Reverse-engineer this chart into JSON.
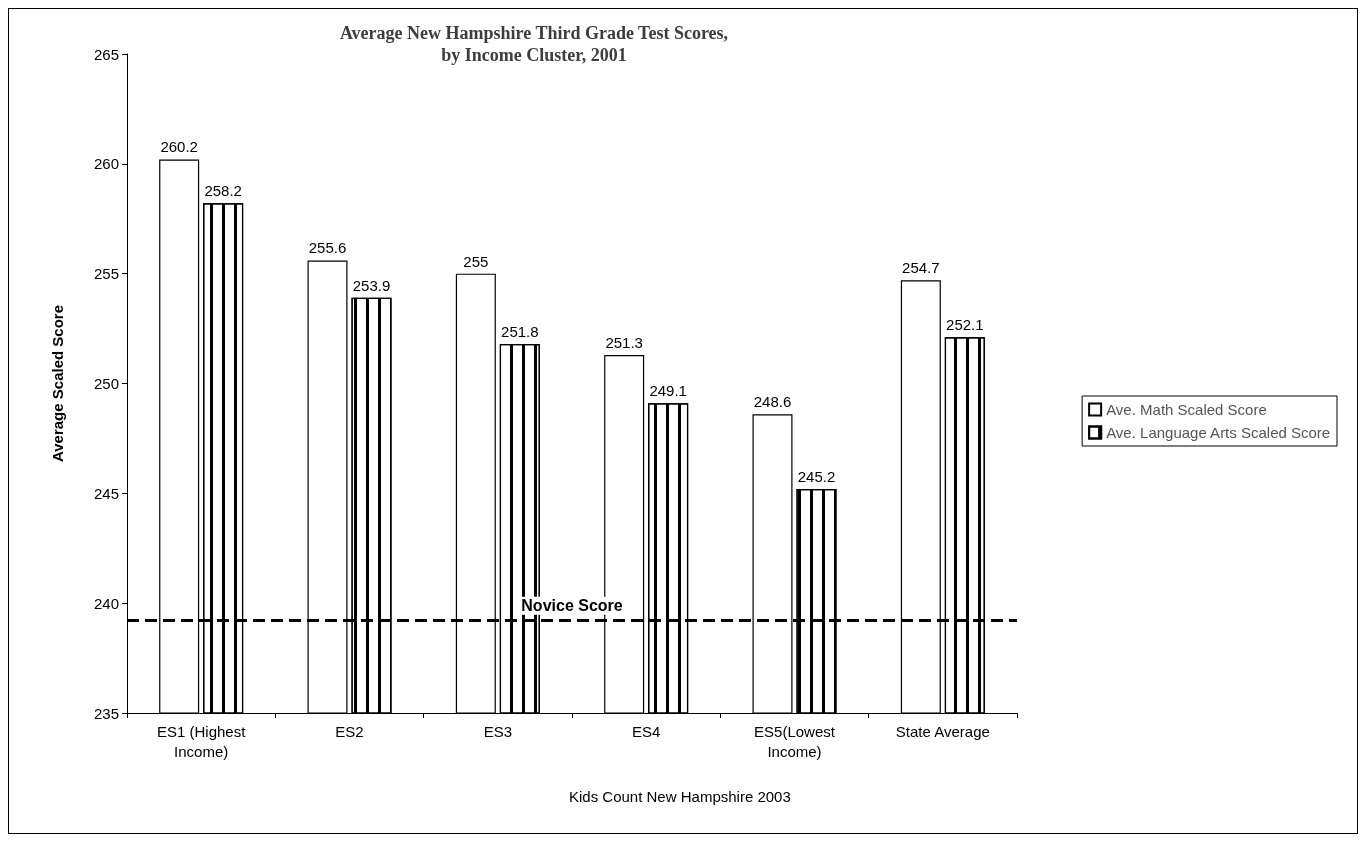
{
  "chart_data": {
    "type": "bar",
    "title": "Average New Hampshire Third Grade Test Scores,\nby Income Cluster, 2001",
    "ylabel": "Average Scaled Score",
    "categories": [
      "ES1 (Highest\nIncome)",
      "ES2",
      "ES3",
      "ES4",
      "ES5(Lowest\nIncome)",
      "State Average"
    ],
    "series": [
      {
        "name": "Ave. Math Scaled Score",
        "color": "#ffffff",
        "values": [
          260.2,
          255.6,
          255,
          251.3,
          248.6,
          254.7
        ]
      },
      {
        "name": "Ave. Language Arts Scaled Score",
        "color": "#ffffff",
        "values": [
          258.2,
          253.9,
          251.8,
          249.1,
          245.2,
          252.1
        ]
      }
    ],
    "ylim": [
      235,
      265
    ],
    "yticks": [
      235,
      240,
      245,
      250,
      255,
      260,
      265
    ],
    "grid": false,
    "legend": "right",
    "data_labels": true,
    "ref_lines": [
      {
        "axis": "y",
        "value": 239.2,
        "label": "Novice Score",
        "color": "#000000",
        "line_style": "dashed"
      }
    ],
    "annotations": [
      "Kids Count New Hampshire 2003"
    ]
  }
}
